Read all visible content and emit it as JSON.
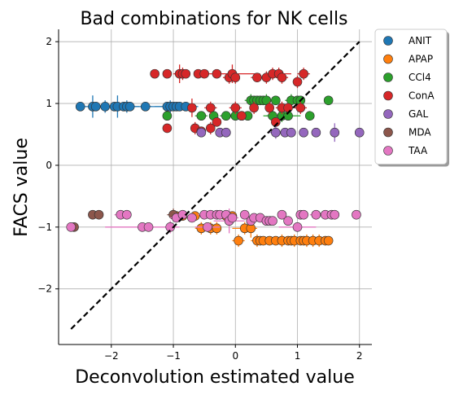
{
  "chart_data": {
    "type": "scatter",
    "title": "Bad combinations for NK cells",
    "xlabel": "Deconvolution estimated value",
    "ylabel": "FACS value",
    "xlim": [
      -2.85,
      2.2
    ],
    "ylim": [
      -2.9,
      2.2
    ],
    "xticks": [
      -2,
      -1,
      0,
      1,
      2
    ],
    "yticks": [
      -2,
      -1,
      0,
      1,
      2
    ],
    "xtick_labels": [
      "−2",
      "−1",
      "0",
      "1",
      "2"
    ],
    "ytick_labels": [
      "−2",
      "−1",
      "0",
      "1",
      "2"
    ],
    "grid": true,
    "legend_position": "outside-top-right",
    "identity_line": {
      "x": [
        -2.65,
        2.0
      ],
      "y": [
        -2.65,
        2.0
      ],
      "style": "dashed",
      "color": "#000000"
    },
    "series": [
      {
        "name": "ANIT",
        "color": "#1f77b4",
        "y": 0.95,
        "x": [
          -2.5,
          -2.3,
          -2.25,
          -2.1,
          -1.95,
          -1.9,
          -1.8,
          -1.75,
          -1.7,
          -1.45,
          -1.1,
          -1.05,
          -1.0,
          -0.95,
          -0.9,
          -0.8
        ],
        "xerr": [
          0.05,
          0.15,
          0.05,
          0.1,
          0.2,
          0.05,
          0.1,
          0.2,
          0.15,
          0.1,
          0.3,
          0.1,
          0.05,
          0.35,
          0.1,
          0.1
        ],
        "yerr": [
          0.05,
          0.18,
          0.05,
          0.1,
          0.05,
          0.18,
          0.05,
          0.1,
          0.05,
          0.05,
          0.05,
          0.1,
          0.05,
          0.05,
          0.05,
          0.05
        ]
      },
      {
        "name": "APAP",
        "color": "#ff7f0e",
        "x": [
          -0.95,
          -0.85,
          -0.65,
          -0.55,
          -0.4,
          -0.3,
          -0.15,
          -0.05,
          0.05,
          0.15,
          0.25,
          0.35,
          0.4,
          0.45,
          0.55,
          0.65,
          0.75,
          0.85,
          0.9,
          0.95,
          1.05,
          1.1,
          1.15,
          1.25,
          1.35,
          1.45,
          1.5
        ],
        "y": [
          -0.82,
          -0.82,
          -0.82,
          -1.02,
          -1.02,
          -1.02,
          -0.82,
          -0.82,
          -1.22,
          -1.02,
          -1.02,
          -1.22,
          -1.22,
          -1.22,
          -1.22,
          -1.22,
          -1.22,
          -1.22,
          -1.22,
          -1.22,
          -1.22,
          -1.22,
          -1.22,
          -1.22,
          -1.22,
          -1.22,
          -1.22
        ],
        "xerr": [
          0.05,
          0.05,
          0.05,
          0.1,
          0.05,
          0.05,
          0.05,
          0.05,
          0.1,
          0.2,
          0.05,
          0.1,
          0.05,
          0.05,
          0.05,
          0.05,
          0.05,
          0.1,
          0.05,
          0.05,
          0.05,
          0.05,
          0.05,
          0.05,
          0.05,
          0.05,
          0.05
        ],
        "yerr": [
          0.05,
          0.05,
          0.05,
          0.1,
          0.1,
          0.1,
          0.05,
          0.05,
          0.1,
          0.1,
          0.15,
          0.1,
          0.05,
          0.05,
          0.05,
          0.05,
          0.1,
          0.05,
          0.05,
          0.1,
          0.05,
          0.05,
          0.1,
          0.1,
          0.1,
          0.05,
          0.05
        ]
      },
      {
        "name": "CCl4",
        "color": "#2ca02c",
        "x": [
          -1.1,
          -0.55,
          -0.35,
          -0.15,
          0.0,
          0.1,
          0.2,
          0.25,
          0.3,
          0.35,
          0.4,
          0.45,
          0.5,
          0.6,
          0.65,
          0.75,
          0.85,
          0.9,
          1.0,
          1.05,
          1.2,
          1.5
        ],
        "y": [
          0.8,
          0.8,
          0.8,
          0.8,
          0.8,
          0.8,
          0.8,
          1.05,
          1.05,
          1.05,
          1.05,
          1.05,
          1.05,
          0.8,
          1.05,
          0.8,
          0.8,
          1.05,
          1.05,
          1.05,
          0.8,
          1.05
        ],
        "xerr": [
          0.05,
          0.1,
          0.05,
          0.1,
          0.05,
          0.05,
          0.05,
          0.1,
          0.05,
          0.05,
          0.05,
          0.05,
          0.1,
          0.1,
          0.05,
          0.3,
          0.05,
          0.1,
          0.05,
          0.05,
          0.05,
          0.05
        ],
        "yerr": [
          0.05,
          0.05,
          0.05,
          0.05,
          0.05,
          0.05,
          0.05,
          0.1,
          0.05,
          0.05,
          0.05,
          0.05,
          0.1,
          0.1,
          0.05,
          0.1,
          0.05,
          0.1,
          0.05,
          0.05,
          0.05,
          0.05
        ]
      },
      {
        "name": "ConA",
        "color": "#d62728",
        "x": [
          -1.3,
          -1.1,
          -0.9,
          -0.85,
          -0.8,
          -0.6,
          -0.5,
          -0.3,
          -0.1,
          -0.05,
          0.0,
          0.35,
          0.5,
          0.6,
          0.7,
          0.75,
          1.0,
          1.1,
          -1.1,
          -0.7,
          -0.4,
          0.0,
          0.3,
          0.55,
          0.75,
          0.85,
          1.05,
          -0.65,
          -0.4,
          0.1,
          0.65,
          -0.55,
          -0.3
        ],
        "y": [
          1.48,
          1.48,
          1.48,
          1.48,
          1.48,
          1.48,
          1.48,
          1.48,
          1.42,
          1.48,
          1.42,
          1.42,
          1.42,
          1.48,
          1.48,
          1.42,
          1.35,
          1.48,
          0.6,
          0.93,
          0.93,
          0.93,
          0.93,
          0.93,
          0.93,
          0.93,
          0.93,
          0.6,
          0.6,
          0.8,
          0.7,
          0.55,
          0.7
        ],
        "xerr": [
          0.05,
          0.05,
          0.1,
          0.05,
          0.05,
          0.05,
          0.05,
          0.05,
          0.1,
          0.45,
          0.05,
          0.1,
          0.05,
          0.1,
          0.2,
          0.1,
          0.05,
          0.1,
          0.05,
          0.05,
          0.1,
          0.1,
          0.05,
          0.05,
          0.1,
          0.05,
          0.1,
          0.05,
          0.05,
          0.05,
          0.05,
          0.05,
          0.05
        ],
        "yerr": [
          0.05,
          0.05,
          0.15,
          0.1,
          0.05,
          0.05,
          0.05,
          0.05,
          0.1,
          0.15,
          0.1,
          0.05,
          0.1,
          0.1,
          0.1,
          0.1,
          0.1,
          0.1,
          0.05,
          0.15,
          0.1,
          0.1,
          0.1,
          0.1,
          0.1,
          0.05,
          0.1,
          0.1,
          0.1,
          0.05,
          0.05,
          0.05,
          0.05
        ]
      },
      {
        "name": "GAL",
        "color": "#9467bd",
        "y": 0.53,
        "x": [
          -0.55,
          -0.25,
          -0.15,
          0.65,
          0.8,
          0.9,
          1.1,
          1.3,
          1.6,
          2.0
        ],
        "xerr": [
          0.05,
          0.05,
          0.05,
          0.1,
          0.05,
          0.05,
          0.05,
          0.05,
          0.05,
          0.05
        ],
        "yerr": [
          0.05,
          0.05,
          0.05,
          0.1,
          0.05,
          0.05,
          0.05,
          0.05,
          0.15,
          0.05
        ]
      },
      {
        "name": "MDA",
        "color": "#8c564b",
        "x": [
          -2.6,
          -2.3,
          -2.2,
          -1.0
        ],
        "y": [
          -1.0,
          -0.8,
          -0.8,
          -0.8
        ],
        "xerr": [
          0.05,
          0.05,
          0.05,
          0.1
        ],
        "yerr": [
          0.05,
          0.05,
          0.05,
          0.1
        ]
      },
      {
        "name": "TAA",
        "color": "#e377c2",
        "x": [
          -2.65,
          -1.85,
          -1.75,
          -1.5,
          -1.4,
          -1.05,
          -0.95,
          -0.85,
          -0.7,
          -0.5,
          -0.45,
          -0.4,
          -0.3,
          -0.25,
          -0.15,
          -0.1,
          -0.05,
          0.15,
          0.25,
          0.3,
          0.4,
          0.5,
          0.55,
          0.6,
          0.75,
          0.85,
          1.0,
          1.05,
          1.1,
          1.3,
          1.45,
          1.55,
          1.6,
          1.95
        ],
        "y": [
          -1.0,
          -0.8,
          -0.8,
          -1.0,
          -1.0,
          -1.0,
          -0.85,
          -0.8,
          -0.85,
          -0.8,
          -1.0,
          -0.8,
          -0.8,
          -0.8,
          -0.8,
          -0.9,
          -0.85,
          -0.8,
          -0.9,
          -0.85,
          -0.85,
          -0.9,
          -0.9,
          -0.9,
          -0.8,
          -0.9,
          -1.0,
          -0.8,
          -0.8,
          -0.8,
          -0.8,
          -0.8,
          -0.8,
          -0.8
        ],
        "xerr": [
          0.05,
          0.1,
          0.05,
          0.6,
          0.05,
          0.1,
          0.1,
          0.05,
          0.05,
          0.1,
          0.2,
          0.05,
          0.05,
          0.05,
          0.1,
          0.25,
          0.1,
          0.05,
          0.05,
          0.05,
          0.05,
          0.05,
          0.05,
          0.05,
          0.05,
          0.05,
          0.3,
          0.05,
          0.05,
          0.1,
          0.05,
          0.05,
          0.05,
          0.05
        ],
        "yerr": [
          0.05,
          0.05,
          0.05,
          0.05,
          0.05,
          0.1,
          0.05,
          0.05,
          0.05,
          0.05,
          0.05,
          0.05,
          0.05,
          0.05,
          0.05,
          0.2,
          0.05,
          0.05,
          0.05,
          0.05,
          0.05,
          0.05,
          0.05,
          0.05,
          0.05,
          0.05,
          0.05,
          0.05,
          0.05,
          0.05,
          0.05,
          0.05,
          0.05,
          0.05
        ]
      }
    ]
  }
}
